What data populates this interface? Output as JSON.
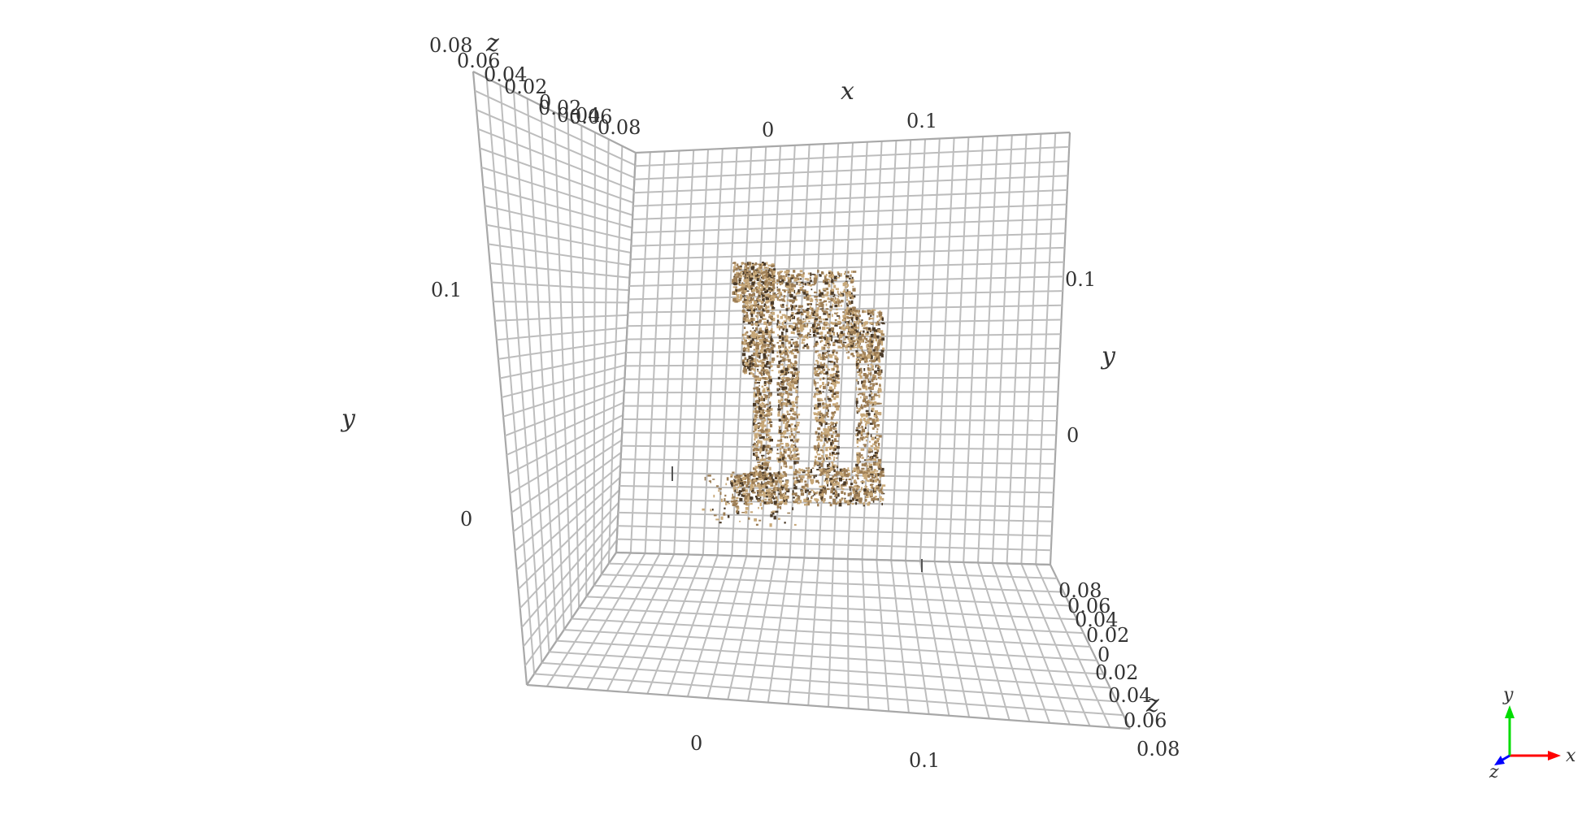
{
  "chart_data": {
    "type": "scatter",
    "subtype": "3d-point-cloud",
    "content": "colored point cloud of ruined stone columns",
    "axes": {
      "x": {
        "label": "x",
        "ticks": [
          "0",
          "0.1"
        ]
      },
      "y": {
        "label": "y",
        "ticks": [
          "0",
          "0.1"
        ]
      },
      "z": {
        "label": "z",
        "ticks": [
          "0.08",
          "0.06",
          "0.04",
          "0.02",
          "0",
          "0.02",
          "0.04",
          "0.06",
          "0.08"
        ]
      }
    },
    "grid": true,
    "colors": {
      "grid": "#bdbdbd",
      "points_light": "#c8a97a",
      "points_mid": "#9c7d55",
      "points_dark": "#4a3a28",
      "gizmo_x": "#ff0000",
      "gizmo_y": "#00dd00",
      "gizmo_z": "#0000ff"
    },
    "orientation_gizmo": {
      "x_label": "x",
      "y_label": "y",
      "z_label": "z"
    }
  }
}
